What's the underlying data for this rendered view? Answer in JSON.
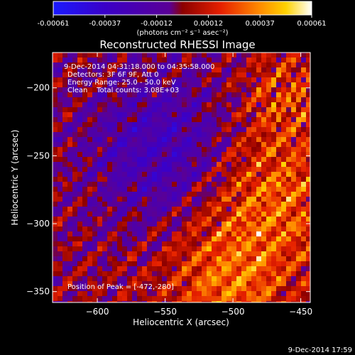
{
  "colorbar": {
    "ticks": [
      "-0.00061",
      "-0.00037",
      "-0.00012",
      "0.00012",
      "0.00037",
      "0.00061"
    ],
    "units_label": "(photons cm⁻² s⁻¹ asec⁻²)",
    "colors": [
      "#1a1aff",
      "#3a00c8",
      "#5a0096",
      "#8c0000",
      "#e62000",
      "#ff8c00",
      "#ffd200",
      "#ffffff"
    ]
  },
  "footer": {
    "date": "9-Dec-2014 17:59"
  },
  "chart_data": {
    "type": "heatmap",
    "title": "Reconstructed RHESSI Image",
    "xlabel": "Heliocentric X (arcsec)",
    "ylabel": "Heliocentric Y (arcsec)",
    "xlim": [
      -633,
      -443
    ],
    "ylim": [
      -358,
      -174
    ],
    "xticks": [
      -600,
      -550,
      -500,
      -450
    ],
    "yticks": [
      -200,
      -250,
      -300,
      -350
    ],
    "value_range": [
      -0.00061,
      0.00061
    ],
    "peak": {
      "x": -472,
      "y": -280
    },
    "annotations": [
      "9-Dec-2014 04:31:18.000 to 04:35:58.000",
      "Detectors: 3F 6F 9F, Att 0",
      "Energy Range: 25.0 - 50.0 keV",
      "Clean    Total counts: 3.08E+03"
    ],
    "peak_label": "Position of Peak = [-472,-280]"
  }
}
